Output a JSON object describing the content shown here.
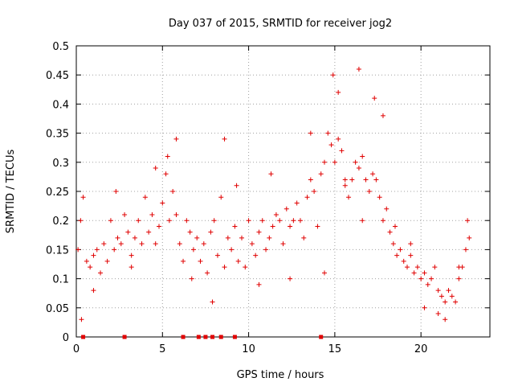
{
  "chart_data": {
    "type": "scatter",
    "title": "Day 037 of 2015, SRMTID for receiver jog2",
    "xlabel": "GPS time / hours",
    "ylabel": "SRMTID / TECUs",
    "xlim": [
      0,
      24
    ],
    "ylim": [
      0,
      0.5
    ],
    "xticks": [
      0,
      5,
      10,
      15,
      20
    ],
    "yticks": [
      0,
      0.05,
      0.1,
      0.15,
      0.2,
      0.25,
      0.3,
      0.35,
      0.4,
      0.45,
      0.5
    ],
    "grid": true,
    "legend": "none",
    "marker_color": "#e00000",
    "series": [
      {
        "marker": "+",
        "x": [
          0.1,
          0.25,
          0.4,
          0.6,
          0.8,
          1.0,
          1.2,
          1.4,
          1.6,
          1.8,
          2.0,
          2.2,
          2.4,
          2.6,
          2.8,
          3.0,
          3.2,
          3.4,
          3.6,
          3.8,
          4.0,
          4.2,
          4.4,
          4.6,
          4.8,
          5.0,
          5.2,
          5.4,
          5.6,
          5.8,
          6.0,
          6.2,
          6.4,
          6.6,
          6.8,
          7.0,
          7.2,
          7.4,
          7.6,
          7.8,
          8.0,
          8.2,
          8.4,
          8.6,
          8.8,
          9.0,
          9.2,
          9.4,
          9.6,
          9.8,
          10.0,
          10.2,
          10.4,
          10.6,
          10.8,
          11.0,
          11.2,
          11.4,
          11.6,
          11.8,
          12.0,
          12.2,
          12.4,
          12.6,
          12.8,
          13.0,
          13.2,
          13.4,
          13.6,
          13.8,
          14.0,
          14.2,
          14.4,
          14.6,
          14.8,
          15.0,
          15.2,
          15.4,
          15.6,
          15.8,
          16.0,
          16.2,
          16.4,
          16.6,
          16.8,
          17.0,
          17.2,
          17.4,
          17.6,
          17.8,
          18.0,
          18.2,
          18.4,
          18.6,
          18.8,
          19.0,
          19.2,
          19.4,
          19.6,
          19.8,
          20.0,
          20.2,
          20.4,
          20.6,
          20.8,
          21.0,
          21.2,
          21.4,
          21.6,
          21.8,
          22.0,
          22.2,
          22.4,
          22.6,
          22.8,
          0.3,
          1.0,
          2.3,
          3.2,
          4.6,
          5.3,
          5.8,
          6.7,
          7.9,
          8.6,
          9.3,
          10.6,
          11.3,
          12.4,
          13.6,
          14.4,
          14.9,
          15.2,
          15.6,
          16.4,
          16.6,
          17.3,
          17.8,
          18.5,
          19.4,
          20.2,
          21.0,
          21.4,
          22.2,
          22.7
        ],
        "y": [
          0.15,
          0.2,
          0.24,
          0.13,
          0.12,
          0.14,
          0.15,
          0.11,
          0.16,
          0.13,
          0.2,
          0.15,
          0.17,
          0.16,
          0.21,
          0.18,
          0.14,
          0.17,
          0.2,
          0.16,
          0.24,
          0.18,
          0.21,
          0.16,
          0.19,
          0.23,
          0.28,
          0.2,
          0.25,
          0.21,
          0.16,
          0.13,
          0.2,
          0.18,
          0.15,
          0.17,
          0.13,
          0.16,
          0.11,
          0.18,
          0.2,
          0.14,
          0.24,
          0.12,
          0.17,
          0.15,
          0.19,
          0.13,
          0.17,
          0.12,
          0.2,
          0.16,
          0.14,
          0.18,
          0.2,
          0.15,
          0.17,
          0.19,
          0.21,
          0.2,
          0.16,
          0.22,
          0.19,
          0.2,
          0.23,
          0.2,
          0.17,
          0.24,
          0.27,
          0.25,
          0.19,
          0.28,
          0.3,
          0.35,
          0.33,
          0.3,
          0.34,
          0.32,
          0.27,
          0.24,
          0.27,
          0.3,
          0.29,
          0.31,
          0.27,
          0.25,
          0.28,
          0.27,
          0.24,
          0.2,
          0.22,
          0.18,
          0.16,
          0.14,
          0.15,
          0.13,
          0.12,
          0.14,
          0.11,
          0.12,
          0.1,
          0.11,
          0.09,
          0.1,
          0.12,
          0.08,
          0.07,
          0.06,
          0.08,
          0.07,
          0.06,
          0.1,
          0.12,
          0.15,
          0.17,
          0.03,
          0.08,
          0.25,
          0.12,
          0.29,
          0.31,
          0.34,
          0.1,
          0.06,
          0.34,
          0.26,
          0.09,
          0.28,
          0.1,
          0.35,
          0.11,
          0.45,
          0.42,
          0.26,
          0.46,
          0.2,
          0.41,
          0.38,
          0.19,
          0.16,
          0.05,
          0.04,
          0.03,
          0.12,
          0.2
        ],
        "note_markers": "+"
      },
      {
        "marker": "square",
        "x": [
          0.4,
          2.8,
          6.2,
          7.1,
          7.5,
          7.9,
          8.4,
          9.2,
          14.2
        ],
        "y": [
          0,
          0,
          0,
          0,
          0,
          0,
          0,
          0,
          0
        ]
      }
    ]
  }
}
